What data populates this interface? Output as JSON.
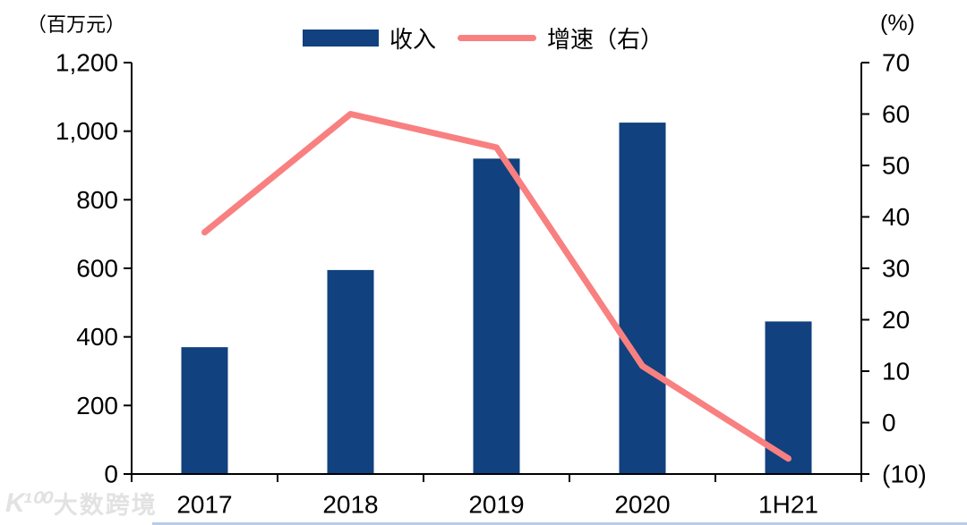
{
  "units": {
    "left": "（百万元）",
    "right": "(%)"
  },
  "legend": {
    "items": [
      {
        "label": "收入",
        "swatch": "bar",
        "color": "#11417e"
      },
      {
        "label": "增速（右）",
        "swatch": "line",
        "color": "#f98080"
      }
    ]
  },
  "watermark": {
    "logo": "K¹⁰⁰",
    "text": "大数跨境"
  },
  "footer_rule_color": "#b8cde9",
  "chart_data": {
    "type": "bar",
    "subtype": "bar+line dual axis",
    "title": "",
    "categories": [
      "2017",
      "2018",
      "2019",
      "2020",
      "1H21"
    ],
    "series": [
      {
        "name": "收入",
        "type": "bar",
        "axis": "left",
        "color": "#11417e",
        "values": [
          370,
          595,
          920,
          1025,
          445
        ]
      },
      {
        "name": "增速（右）",
        "type": "line",
        "axis": "right",
        "color": "#f98080",
        "values": [
          37,
          60,
          53.5,
          11,
          -7
        ]
      }
    ],
    "left_axis": {
      "label": "（百万元）",
      "min": 0,
      "max": 1200,
      "step": 200,
      "ticks": [
        "1,200",
        "1,000",
        "800",
        "600",
        "400",
        "200",
        "0"
      ]
    },
    "right_axis": {
      "label": "(%)",
      "min": -10,
      "max": 70,
      "step": 10,
      "ticks": [
        "70",
        "60",
        "50",
        "40",
        "30",
        "20",
        "10",
        "0",
        "(10)"
      ]
    },
    "grid": false,
    "legend_position": "top-center",
    "axis_color": "#000000",
    "tick_label_color": "#000000"
  }
}
